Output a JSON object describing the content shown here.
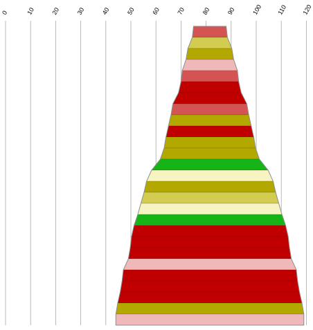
{
  "chart_data": {
    "type": "funnel",
    "title": "",
    "xlabel": "",
    "ylabel": "",
    "x_ticks": [
      0,
      10,
      20,
      30,
      40,
      50,
      60,
      70,
      80,
      90,
      100,
      110,
      120
    ],
    "xlim": [
      0,
      120
    ],
    "center": 81.5,
    "grid": true,
    "bands": [
      {
        "width": 13.0,
        "color": "#d45454"
      },
      {
        "width": 14.0,
        "color": "#d2cc50"
      },
      {
        "width": 17.5,
        "color": "#b2a800"
      },
      {
        "width": 19.0,
        "color": "#f0b8b8"
      },
      {
        "width": 22.0,
        "color": "#d45454"
      },
      {
        "width": 23.0,
        "color": "#c00000"
      },
      {
        "width": 25.0,
        "color": "#c00000"
      },
      {
        "width": 29.5,
        "color": "#d45454"
      },
      {
        "width": 31.0,
        "color": "#b2a800"
      },
      {
        "width": 33.0,
        "color": "#c00000"
      },
      {
        "width": 35.0,
        "color": "#b2a800"
      },
      {
        "width": 36.5,
        "color": "#b2a800"
      },
      {
        "width": 39.5,
        "color": "#16b416"
      },
      {
        "width": 46.5,
        "color": "#f7f4c2"
      },
      {
        "width": 50.5,
        "color": "#b2a800"
      },
      {
        "width": 52.5,
        "color": "#d2cc50"
      },
      {
        "width": 55.0,
        "color": "#f7f4c2"
      },
      {
        "width": 57.5,
        "color": "#16b416"
      },
      {
        "width": 60.5,
        "color": "#c00000"
      },
      {
        "width": 62.5,
        "color": "#c00000"
      },
      {
        "width": 63.5,
        "color": "#c00000"
      },
      {
        "width": 65.0,
        "color": "#f0b8b8"
      },
      {
        "width": 69.0,
        "color": "#c00000"
      },
      {
        "width": 70.0,
        "color": "#c00000"
      },
      {
        "width": 71.5,
        "color": "#c00000"
      },
      {
        "width": 73.5,
        "color": "#b2a800"
      },
      {
        "width": 75.0,
        "color": "#f0b8b8"
      }
    ]
  }
}
